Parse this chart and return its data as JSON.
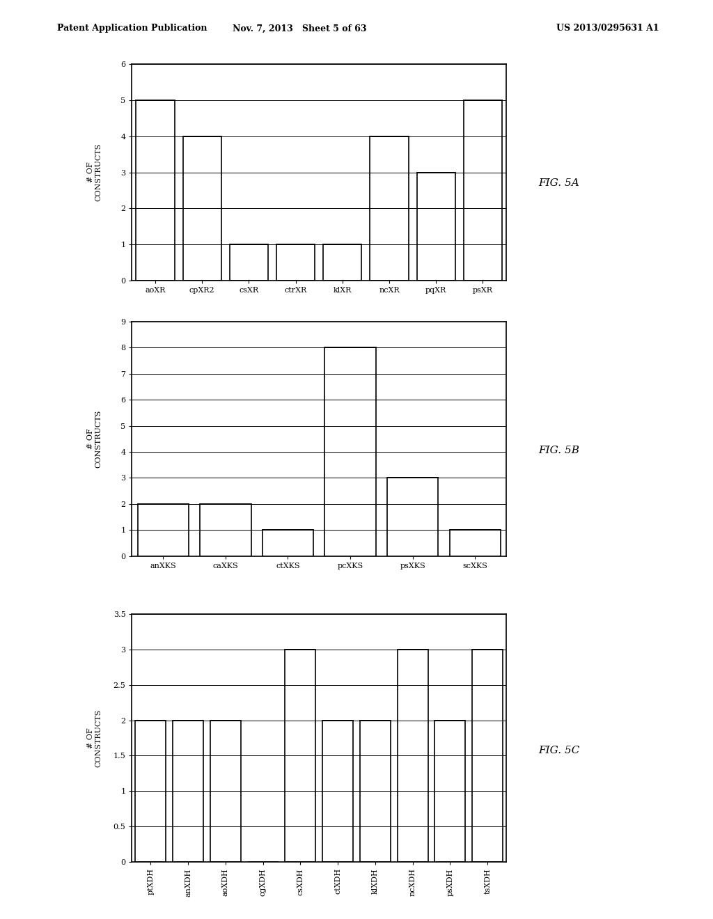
{
  "fig5a": {
    "categories": [
      "aoXR",
      "cpXR2",
      "csXR",
      "ctrXR",
      "klXR",
      "ncXR",
      "pqXR",
      "psXR"
    ],
    "values": [
      5,
      4,
      1,
      1,
      1,
      4,
      3,
      5
    ],
    "ylim": [
      0,
      6
    ],
    "yticks": [
      0,
      1,
      2,
      3,
      4,
      5,
      6
    ],
    "ytick_labels": [
      "0",
      "1",
      "2",
      "3",
      "4",
      "5",
      "6"
    ],
    "ylabel": "# OF\nCONSTRUCTS",
    "label": "FIG. 5A",
    "line_interval": 1.0
  },
  "fig5b": {
    "categories": [
      "anXKS",
      "caXKS",
      "ctXKS",
      "pcXKS",
      "psXKS",
      "scXKS"
    ],
    "values": [
      2,
      2,
      1,
      8,
      3,
      1
    ],
    "ylim": [
      0,
      9
    ],
    "yticks": [
      0,
      1,
      2,
      3,
      4,
      5,
      6,
      7,
      8,
      9
    ],
    "ytick_labels": [
      "0",
      "1",
      "2",
      "3",
      "4",
      "5",
      "6",
      "7",
      "8",
      "9"
    ],
    "ylabel": "# OF\nCONSTRUCTS",
    "label": "FIG. 5B",
    "line_interval": 1.0
  },
  "fig5c": {
    "categories": [
      "ptXDH",
      "anXDH",
      "aoXDH",
      "cgXDH",
      "csXDH",
      "ctXDH",
      "klXDH",
      "ncXDH",
      "psXDH",
      "tsXDH"
    ],
    "values": [
      2,
      2,
      2,
      0,
      3,
      2,
      2,
      3,
      2,
      3
    ],
    "ylim": [
      0,
      3.5
    ],
    "yticks": [
      0,
      0.5,
      1.0,
      1.5,
      2.0,
      2.5,
      3.0,
      3.5
    ],
    "ytick_labels": [
      "0",
      "0.5",
      "1",
      "1.5",
      "2",
      "2.5",
      "3",
      "3.5"
    ],
    "ylabel": "# OF\nCONSTRUCTS",
    "label": "FIG. 5C",
    "line_interval": 0.5
  },
  "background_color": "#ffffff",
  "bar_color": "#ffffff",
  "bar_edge_color": "#000000",
  "bar_linewidth": 1.2,
  "grid_color": "#000000",
  "grid_linewidth": 0.7,
  "header_left": "Patent Application Publication",
  "header_mid": "Nov. 7, 2013   Sheet 5 of 63",
  "header_right": "US 2013/0295631 A1",
  "font_size_label": 8,
  "font_size_tick": 8,
  "font_size_fig": 11,
  "font_size_header": 9
}
